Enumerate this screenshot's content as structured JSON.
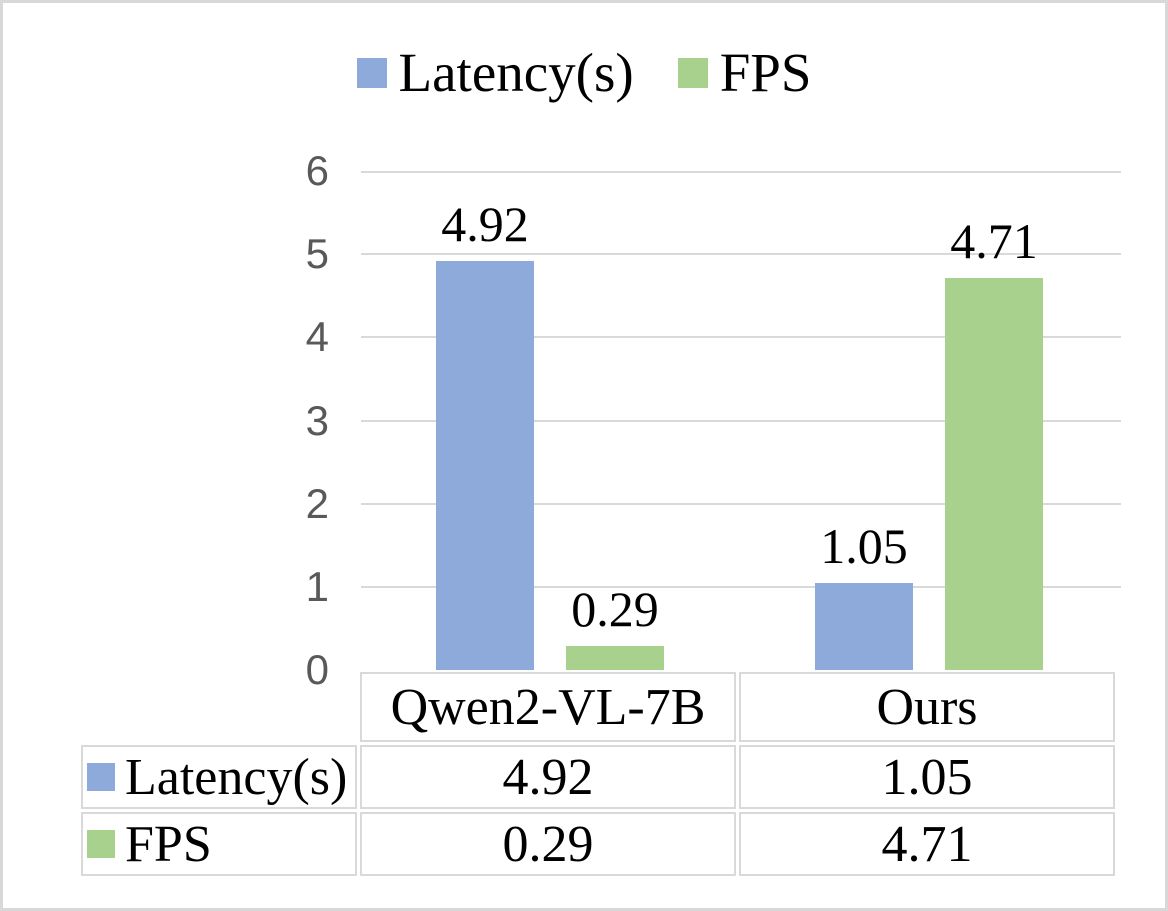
{
  "chart_data": {
    "type": "bar",
    "title": "",
    "categories": [
      "Qwen2-VL-7B",
      "Ours"
    ],
    "series": [
      {
        "name": "Latency(s)",
        "color": "#8EAADB",
        "values": [
          4.92,
          1.05
        ]
      },
      {
        "name": "FPS",
        "color": "#A9D18E",
        "values": [
          0.29,
          4.71
        ]
      }
    ],
    "data_labels": [
      "4.92",
      "0.29",
      "1.05",
      "4.71"
    ],
    "ylim": [
      0,
      6
    ],
    "yticks": [
      0,
      1,
      2,
      3,
      4,
      5,
      6
    ],
    "grid": true,
    "legend_position": "top",
    "has_data_table": true,
    "colors": {
      "gridline": "#d9d9d9",
      "tick_label": "#595959",
      "table_border": "#d9d9d9",
      "frame_border": "#d8d8d8",
      "data_label": "#000000"
    }
  }
}
